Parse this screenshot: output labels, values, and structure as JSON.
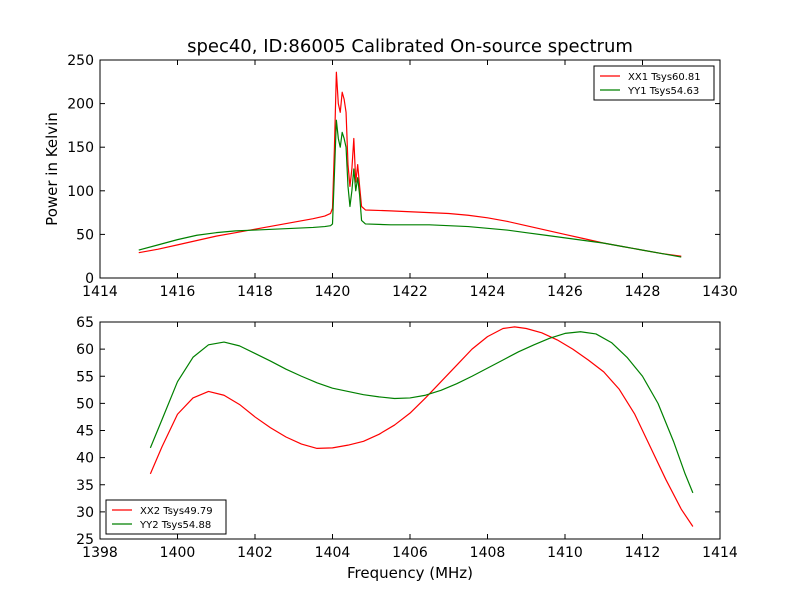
{
  "figure": {
    "title": "spec40, ID:86005 Calibrated On-source spectrum"
  },
  "chart_data": [
    {
      "type": "line",
      "title": "spec40, ID:86005 Calibrated On-source spectrum",
      "xlabel": "",
      "ylabel": "Power in Kelvin",
      "xlim": [
        1414,
        1430
      ],
      "ylim": [
        0,
        250
      ],
      "xticks": [
        1414,
        1416,
        1418,
        1420,
        1422,
        1424,
        1426,
        1428,
        1430
      ],
      "yticks": [
        0,
        50,
        100,
        150,
        200,
        250
      ],
      "grid": false,
      "legend_position": "top-right",
      "series": [
        {
          "name": "XX1 Tsys60.81",
          "color": "#ff0000",
          "points": [
            [
              1415.0,
              29
            ],
            [
              1415.5,
              33
            ],
            [
              1416.0,
              38
            ],
            [
              1416.5,
              43
            ],
            [
              1417.0,
              48
            ],
            [
              1417.5,
              52
            ],
            [
              1418.0,
              56
            ],
            [
              1418.5,
              60
            ],
            [
              1419.0,
              64
            ],
            [
              1419.5,
              68
            ],
            [
              1419.8,
              71
            ],
            [
              1419.95,
              74
            ],
            [
              1420.0,
              80
            ],
            [
              1420.05,
              150
            ],
            [
              1420.1,
              236
            ],
            [
              1420.15,
              200
            ],
            [
              1420.2,
              190
            ],
            [
              1420.25,
              213
            ],
            [
              1420.3,
              205
            ],
            [
              1420.35,
              190
            ],
            [
              1420.4,
              130
            ],
            [
              1420.45,
              105
            ],
            [
              1420.5,
              125
            ],
            [
              1420.55,
              160
            ],
            [
              1420.6,
              110
            ],
            [
              1420.65,
              130
            ],
            [
              1420.7,
              105
            ],
            [
              1420.75,
              82
            ],
            [
              1420.85,
              78
            ],
            [
              1421.5,
              77
            ],
            [
              1422.0,
              76
            ],
            [
              1422.5,
              75
            ],
            [
              1423.0,
              74
            ],
            [
              1423.5,
              72
            ],
            [
              1424.0,
              69
            ],
            [
              1424.5,
              65
            ],
            [
              1425.0,
              60
            ],
            [
              1425.5,
              55
            ],
            [
              1426.0,
              50
            ],
            [
              1426.5,
              45
            ],
            [
              1427.0,
              40
            ],
            [
              1427.5,
              36
            ],
            [
              1428.0,
              32
            ],
            [
              1428.5,
              28
            ],
            [
              1429.0,
              25
            ]
          ]
        },
        {
          "name": "YY1 Tsys54.63",
          "color": "#008000",
          "points": [
            [
              1415.0,
              32
            ],
            [
              1415.5,
              38
            ],
            [
              1416.0,
              44
            ],
            [
              1416.5,
              49
            ],
            [
              1417.0,
              52
            ],
            [
              1417.5,
              54
            ],
            [
              1418.0,
              55
            ],
            [
              1418.5,
              56
            ],
            [
              1419.0,
              57
            ],
            [
              1419.5,
              58
            ],
            [
              1419.8,
              59
            ],
            [
              1419.95,
              60
            ],
            [
              1420.0,
              62
            ],
            [
              1420.05,
              120
            ],
            [
              1420.1,
              181
            ],
            [
              1420.15,
              160
            ],
            [
              1420.2,
              150
            ],
            [
              1420.25,
              167
            ],
            [
              1420.3,
              160
            ],
            [
              1420.35,
              150
            ],
            [
              1420.4,
              105
            ],
            [
              1420.45,
              82
            ],
            [
              1420.5,
              100
            ],
            [
              1420.55,
              125
            ],
            [
              1420.6,
              100
            ],
            [
              1420.65,
              115
            ],
            [
              1420.7,
              95
            ],
            [
              1420.75,
              66
            ],
            [
              1420.85,
              62
            ],
            [
              1421.5,
              61
            ],
            [
              1422.0,
              61
            ],
            [
              1422.5,
              61
            ],
            [
              1423.0,
              60
            ],
            [
              1423.5,
              59
            ],
            [
              1424.0,
              57
            ],
            [
              1424.5,
              55
            ],
            [
              1425.0,
              52
            ],
            [
              1425.5,
              49
            ],
            [
              1426.0,
              46
            ],
            [
              1426.5,
              43
            ],
            [
              1427.0,
              40
            ],
            [
              1427.5,
              36
            ],
            [
              1428.0,
              32
            ],
            [
              1428.5,
              28
            ],
            [
              1429.0,
              24
            ]
          ]
        }
      ]
    },
    {
      "type": "line",
      "title": "",
      "xlabel": "Frequency (MHz)",
      "ylabel": "",
      "xlim": [
        1398,
        1414
      ],
      "ylim": [
        25,
        65
      ],
      "xticks": [
        1398,
        1400,
        1402,
        1404,
        1406,
        1408,
        1410,
        1412,
        1414
      ],
      "yticks": [
        25,
        30,
        35,
        40,
        45,
        50,
        55,
        60,
        65
      ],
      "grid": false,
      "legend_position": "bottom-left",
      "series": [
        {
          "name": "XX2 Tsys49.79",
          "color": "#ff0000",
          "points": [
            [
              1399.3,
              37
            ],
            [
              1399.6,
              42
            ],
            [
              1400.0,
              48
            ],
            [
              1400.4,
              51
            ],
            [
              1400.8,
              52.2
            ],
            [
              1401.2,
              51.5
            ],
            [
              1401.6,
              49.8
            ],
            [
              1402.0,
              47.5
            ],
            [
              1402.4,
              45.5
            ],
            [
              1402.8,
              43.8
            ],
            [
              1403.2,
              42.5
            ],
            [
              1403.6,
              41.7
            ],
            [
              1404.0,
              41.8
            ],
            [
              1404.4,
              42.3
            ],
            [
              1404.8,
              43
            ],
            [
              1405.2,
              44.3
            ],
            [
              1405.6,
              46
            ],
            [
              1406.0,
              48.2
            ],
            [
              1406.4,
              51
            ],
            [
              1406.8,
              54
            ],
            [
              1407.2,
              57
            ],
            [
              1407.6,
              60
            ],
            [
              1408.0,
              62.3
            ],
            [
              1408.4,
              63.8
            ],
            [
              1408.7,
              64.1
            ],
            [
              1409.0,
              63.8
            ],
            [
              1409.4,
              63
            ],
            [
              1409.8,
              61.7
            ],
            [
              1410.2,
              60
            ],
            [
              1410.6,
              58
            ],
            [
              1411.0,
              55.8
            ],
            [
              1411.4,
              52.6
            ],
            [
              1411.8,
              48
            ],
            [
              1412.2,
              42
            ],
            [
              1412.6,
              36
            ],
            [
              1413.0,
              30.5
            ],
            [
              1413.3,
              27.3
            ]
          ]
        },
        {
          "name": "YY2 Tsys54.88",
          "color": "#008000",
          "points": [
            [
              1399.3,
              41.8
            ],
            [
              1399.6,
              47
            ],
            [
              1400.0,
              54
            ],
            [
              1400.4,
              58.5
            ],
            [
              1400.8,
              60.8
            ],
            [
              1401.2,
              61.3
            ],
            [
              1401.6,
              60.6
            ],
            [
              1402.0,
              59.2
            ],
            [
              1402.4,
              57.8
            ],
            [
              1402.8,
              56.3
            ],
            [
              1403.2,
              55
            ],
            [
              1403.6,
              53.8
            ],
            [
              1404.0,
              52.8
            ],
            [
              1404.4,
              52.2
            ],
            [
              1404.8,
              51.6
            ],
            [
              1405.2,
              51.2
            ],
            [
              1405.6,
              50.9
            ],
            [
              1406.0,
              51
            ],
            [
              1406.4,
              51.5
            ],
            [
              1406.8,
              52.4
            ],
            [
              1407.2,
              53.6
            ],
            [
              1407.6,
              55
            ],
            [
              1408.0,
              56.5
            ],
            [
              1408.4,
              58
            ],
            [
              1408.8,
              59.5
            ],
            [
              1409.2,
              60.8
            ],
            [
              1409.6,
              62
            ],
            [
              1410.0,
              62.9
            ],
            [
              1410.4,
              63.2
            ],
            [
              1410.8,
              62.8
            ],
            [
              1411.2,
              61.2
            ],
            [
              1411.6,
              58.5
            ],
            [
              1412.0,
              55
            ],
            [
              1412.4,
              50
            ],
            [
              1412.8,
              43
            ],
            [
              1413.1,
              37
            ],
            [
              1413.3,
              33.5
            ]
          ]
        }
      ]
    }
  ]
}
